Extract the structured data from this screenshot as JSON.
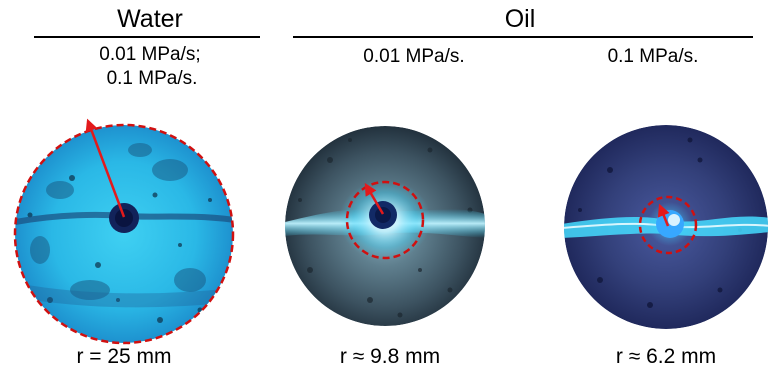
{
  "groups": {
    "water": {
      "label": "Water",
      "rate_line1": "0.01 MPa/s;",
      "rate_line2": "0.1 MPa/s."
    },
    "oil": {
      "label": "Oil",
      "rate_a": "0.01 MPa/s.",
      "rate_b": "0.1 MPa/s."
    }
  },
  "captions": {
    "water": "r = 25 mm",
    "oil_a": "r ≈ 9.8 mm",
    "oil_b": "r ≈ 6.2 mm"
  },
  "colors": {
    "arrow": "#e31a1c",
    "dashed_circle": "#d01010",
    "fluorescence": "#35d7ff"
  }
}
